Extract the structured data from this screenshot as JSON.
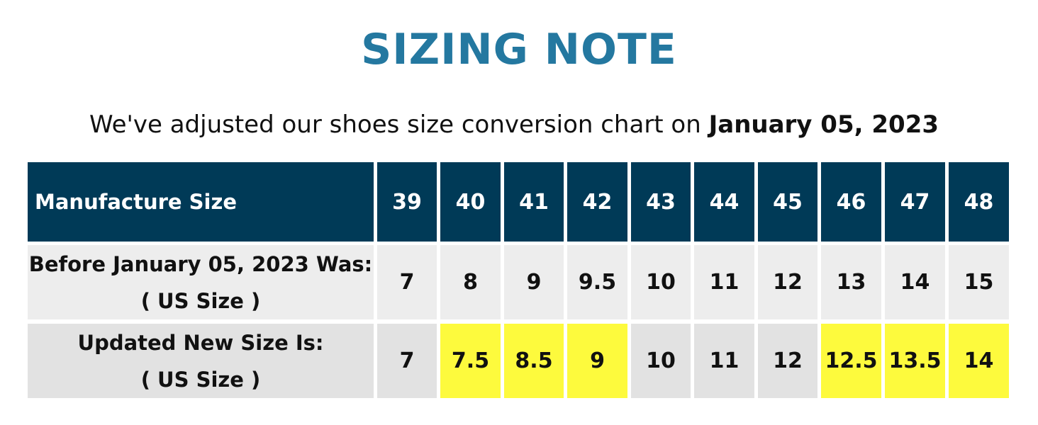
{
  "title": "SIZING NOTE",
  "subtitle": {
    "text": "We've adjusted our shoes size conversion chart on ",
    "date": "January 05, 2023"
  },
  "table": {
    "header_label": "Manufacture Size",
    "sizes": [
      "39",
      "40",
      "41",
      "42",
      "43",
      "44",
      "45",
      "46",
      "47",
      "48"
    ],
    "before": {
      "label_line1": "Before January 05, 2023 Was:",
      "label_line2": "( US Size )",
      "values": [
        "7",
        "8",
        "9",
        "9.5",
        "10",
        "11",
        "12",
        "13",
        "14",
        "15"
      ]
    },
    "after": {
      "label_line1": "Updated New Size Is:",
      "label_line2": "( US Size )",
      "values": [
        "7",
        "7.5",
        "8.5",
        "9",
        "10",
        "11",
        "12",
        "12.5",
        "13.5",
        "14"
      ],
      "highlighted": [
        false,
        true,
        true,
        true,
        false,
        false,
        false,
        true,
        true,
        true
      ]
    }
  },
  "colors": {
    "title": "#2478a0",
    "header_bg": "#003a57",
    "highlight": "#fdfa3d",
    "row_bg": "#ededed"
  }
}
